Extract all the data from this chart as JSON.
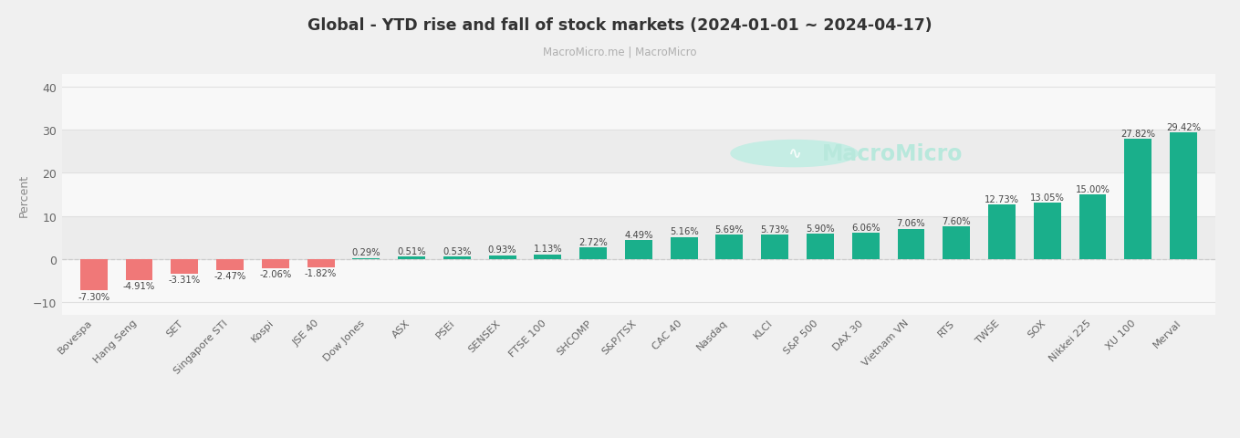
{
  "title": "Global - YTD rise and fall of stock markets (2024-01-01 ~ 2024-04-17)",
  "subtitle": "MacroMicro.me | MacroMicro",
  "ylabel": "Percent",
  "categories": [
    "Bovespa",
    "Hang Seng",
    "SET",
    "Singapore STI",
    "Kospi",
    "JSE 40",
    "Dow Jones",
    "ASX",
    "PSEi",
    "SENSEX",
    "FTSE 100",
    "SHCOMP",
    "S&P/TSX",
    "CAC 40",
    "Nasdaq",
    "KLCI",
    "S&P 500",
    "DAX 30",
    "Vietnam VN",
    "RTS",
    "TWSE",
    "SOX",
    "Nikkei 225",
    "XU 100",
    "Merval"
  ],
  "values": [
    -7.3,
    -4.91,
    -3.31,
    -2.47,
    -2.06,
    -1.82,
    0.29,
    0.51,
    0.53,
    0.93,
    1.13,
    2.72,
    4.49,
    5.16,
    5.69,
    5.73,
    5.9,
    6.06,
    7.06,
    7.6,
    12.73,
    13.05,
    15.0,
    27.82,
    29.42
  ],
  "pos_color": "#1aaf8b",
  "neg_color": "#f07878",
  "bg_color": "#f0f0f0",
  "plot_bg_color": "#f8f8f8",
  "band_color": "#ececec",
  "title_color": "#333333",
  "subtitle_color": "#b0b0b0",
  "grid_color": "#e0e0e0",
  "label_color": "#444444",
  "axis_label_color": "#888888",
  "ylim": [
    -13,
    43
  ],
  "yticks": [
    -10,
    0,
    10,
    20,
    30,
    40
  ],
  "watermark_text": "MacroMicro",
  "watermark_color": "#b8e8dc",
  "watermark_circle_color": "#c5ede4"
}
